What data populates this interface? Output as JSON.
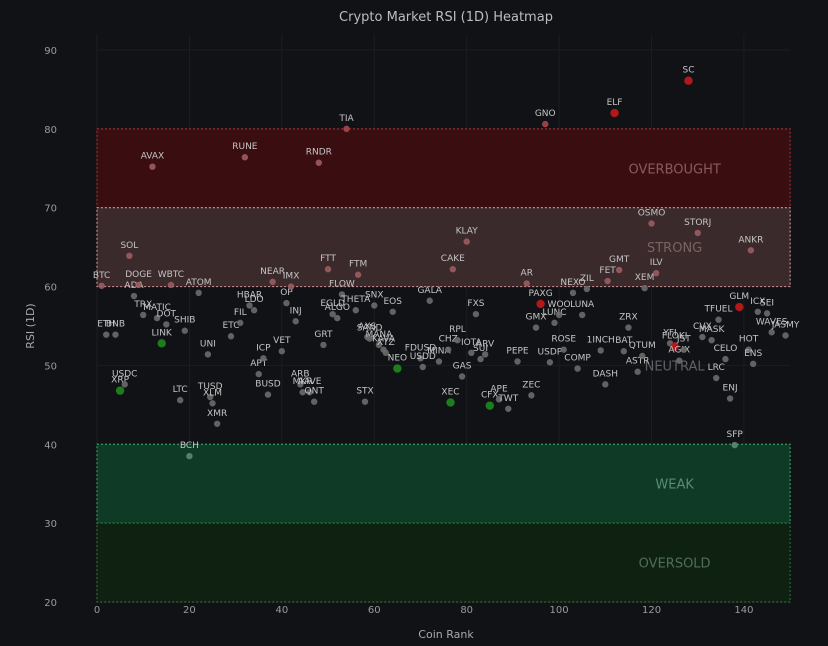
{
  "chart_data": {
    "type": "scatter",
    "title": "Crypto Market RSI (1D) Heatmap",
    "xlabel": "Coin Rank",
    "ylabel": "RSI (1D)",
    "xlim": [
      0,
      150
    ],
    "ylim": [
      20,
      92
    ],
    "x_ticks": [
      0,
      20,
      40,
      60,
      80,
      100,
      120,
      140
    ],
    "y_ticks": [
      20,
      30,
      40,
      50,
      60,
      70,
      80,
      90
    ],
    "grid": true,
    "zones": [
      {
        "name": "OVERBOUGHT",
        "y0": 70,
        "y1": 80,
        "fill": "#3a0e10",
        "border": "#9b2a2f",
        "text_color": "#8a5a5c"
      },
      {
        "name": "STRONG",
        "y0": 60,
        "y1": 70,
        "fill": "#3b2a2c",
        "border": "#c98a8e",
        "text_color": "#7a6264"
      },
      {
        "name": "NEUTRAL",
        "y0": 40,
        "y1": 60,
        "fill": "none",
        "border": "none",
        "text_color": "#5e6066"
      },
      {
        "name": "WEAK",
        "y0": 30,
        "y1": 40,
        "fill": "#0f3a26",
        "border": "#2f9a5e",
        "text_color": "#5a8c72"
      },
      {
        "name": "OVERSOLD",
        "y0": 20,
        "y1": 30,
        "fill": "#0f2212",
        "border": "#256b35",
        "text_color": "#4f6e55"
      }
    ],
    "points": [
      {
        "symbol": "BTC",
        "rank": 1,
        "rsi": 60.1
      },
      {
        "symbol": "ETH",
        "rank": 2,
        "rsi": 53.9
      },
      {
        "symbol": "BNB",
        "rank": 4,
        "rsi": 53.9
      },
      {
        "symbol": "XRP",
        "rank": 5,
        "rsi": 46.8
      },
      {
        "symbol": "USDC",
        "rank": 6,
        "rsi": 47.6
      },
      {
        "symbol": "SOL",
        "rank": 7,
        "rsi": 63.9
      },
      {
        "symbol": "ADA",
        "rank": 8,
        "rsi": 58.8
      },
      {
        "symbol": "DOGE",
        "rank": 9,
        "rsi": 60.2
      },
      {
        "symbol": "TRX",
        "rank": 10,
        "rsi": 56.4
      },
      {
        "symbol": "AVAX",
        "rank": 12,
        "rsi": 75.2
      },
      {
        "symbol": "MATIC",
        "rank": 13,
        "rsi": 56.0
      },
      {
        "symbol": "LINK",
        "rank": 14,
        "rsi": 52.8
      },
      {
        "symbol": "DOT",
        "rank": 15,
        "rsi": 55.2
      },
      {
        "symbol": "WBTC",
        "rank": 16,
        "rsi": 60.2
      },
      {
        "symbol": "LTC",
        "rank": 18,
        "rsi": 45.6
      },
      {
        "symbol": "SHIB",
        "rank": 19,
        "rsi": 54.4
      },
      {
        "symbol": "BCH",
        "rank": 20,
        "rsi": 38.5
      },
      {
        "symbol": "ATOM",
        "rank": 22,
        "rsi": 59.2
      },
      {
        "symbol": "UNI",
        "rank": 24,
        "rsi": 51.4
      },
      {
        "symbol": "TUSD",
        "rank": 24.5,
        "rsi": 46.0
      },
      {
        "symbol": "XLM",
        "rank": 25,
        "rsi": 45.2
      },
      {
        "symbol": "XMR",
        "rank": 26,
        "rsi": 42.6
      },
      {
        "symbol": "ETC",
        "rank": 29,
        "rsi": 53.7
      },
      {
        "symbol": "FIL",
        "rank": 31,
        "rsi": 55.4
      },
      {
        "symbol": "HBAR",
        "rank": 33,
        "rsi": 57.6
      },
      {
        "symbol": "RUNE",
        "rank": 32,
        "rsi": 76.4
      },
      {
        "symbol": "LDO",
        "rank": 34,
        "rsi": 57.0
      },
      {
        "symbol": "APT",
        "rank": 35,
        "rsi": 48.9
      },
      {
        "symbol": "ICP",
        "rank": 36,
        "rsi": 50.9
      },
      {
        "symbol": "BUSD",
        "rank": 37,
        "rsi": 46.3
      },
      {
        "symbol": "NEAR",
        "rank": 38,
        "rsi": 60.6
      },
      {
        "symbol": "VET",
        "rank": 40,
        "rsi": 51.8
      },
      {
        "symbol": "OP",
        "rank": 41,
        "rsi": 57.9
      },
      {
        "symbol": "IMX",
        "rank": 42,
        "rsi": 60.0
      },
      {
        "symbol": "INJ",
        "rank": 43,
        "rsi": 55.6
      },
      {
        "symbol": "ARB",
        "rank": 44,
        "rsi": 47.6
      },
      {
        "symbol": "MKR",
        "rank": 44.5,
        "rsi": 46.6
      },
      {
        "symbol": "AAVE",
        "rank": 46,
        "rsi": 46.6
      },
      {
        "symbol": "QNT",
        "rank": 47,
        "rsi": 45.4
      },
      {
        "symbol": "GRT",
        "rank": 49,
        "rsi": 52.6
      },
      {
        "symbol": "RNDR",
        "rank": 48,
        "rsi": 75.7
      },
      {
        "symbol": "FTT",
        "rank": 50,
        "rsi": 62.2
      },
      {
        "symbol": "EGLD",
        "rank": 51,
        "rsi": 56.5
      },
      {
        "symbol": "ALGO",
        "rank": 52,
        "rsi": 56.0
      },
      {
        "symbol": "FLOW",
        "rank": 53,
        "rsi": 59.0
      },
      {
        "symbol": "TIA",
        "rank": 54,
        "rsi": 80.0
      },
      {
        "symbol": "THETA",
        "rank": 56,
        "rsi": 57.0
      },
      {
        "symbol": "FTM",
        "rank": 56.5,
        "rsi": 61.5
      },
      {
        "symbol": "STX",
        "rank": 58,
        "rsi": 45.4
      },
      {
        "symbol": "SNX",
        "rank": 60,
        "rsi": 57.6
      },
      {
        "symbol": "SAND",
        "rank": 59,
        "rsi": 53.4
      },
      {
        "symbol": "AXS",
        "rank": 58.5,
        "rsi": 53.6
      },
      {
        "symbol": "MANA",
        "rank": 61,
        "rsi": 52.6
      },
      {
        "symbol": "KAVA",
        "rank": 62,
        "rsi": 52.0
      },
      {
        "symbol": "XTZ",
        "rank": 62.5,
        "rsi": 51.6
      },
      {
        "symbol": "EOS",
        "rank": 64,
        "rsi": 56.8
      },
      {
        "symbol": "NEO",
        "rank": 65,
        "rsi": 49.6
      },
      {
        "symbol": "FDUSD",
        "rank": 70,
        "rsi": 50.9
      },
      {
        "symbol": "USDD",
        "rank": 70.5,
        "rsi": 49.8
      },
      {
        "symbol": "GALA",
        "rank": 72,
        "rsi": 58.2
      },
      {
        "symbol": "MINA",
        "rank": 74,
        "rsi": 50.5
      },
      {
        "symbol": "CAKE",
        "rank": 77,
        "rsi": 62.2
      },
      {
        "symbol": "CHZ",
        "rank": 76,
        "rsi": 52.0
      },
      {
        "symbol": "RPL",
        "rank": 78,
        "rsi": 53.2
      },
      {
        "symbol": "GAS",
        "rank": 79,
        "rsi": 48.6
      },
      {
        "symbol": "KLAY",
        "rank": 80,
        "rsi": 65.7
      },
      {
        "symbol": "XEC",
        "rank": 76.5,
        "rsi": 45.3
      },
      {
        "symbol": "IOTA",
        "rank": 81,
        "rsi": 51.6
      },
      {
        "symbol": "FXS",
        "rank": 82,
        "rsi": 56.5
      },
      {
        "symbol": "SUI",
        "rank": 83,
        "rsi": 50.8
      },
      {
        "symbol": "ARV",
        "rank": 84,
        "rsi": 51.4
      },
      {
        "symbol": "CFX",
        "rank": 85,
        "rsi": 44.9
      },
      {
        "symbol": "APE",
        "rank": 87,
        "rsi": 45.7
      },
      {
        "symbol": "TWT",
        "rank": 89,
        "rsi": 44.5
      },
      {
        "symbol": "PEPE",
        "rank": 91,
        "rsi": 50.5
      },
      {
        "symbol": "AR",
        "rank": 93,
        "rsi": 60.4
      },
      {
        "symbol": "ZEC",
        "rank": 94,
        "rsi": 46.2
      },
      {
        "symbol": "GMX",
        "rank": 95,
        "rsi": 54.8
      },
      {
        "symbol": "PAXG",
        "rank": 96,
        "rsi": 57.8
      },
      {
        "symbol": "GNO",
        "rank": 97,
        "rsi": 80.6
      },
      {
        "symbol": "USDP",
        "rank": 98,
        "rsi": 50.4
      },
      {
        "symbol": "LUNC",
        "rank": 99,
        "rsi": 55.4
      },
      {
        "symbol": "WOO",
        "rank": 100,
        "rsi": 56.4
      },
      {
        "symbol": "ROSE",
        "rank": 101,
        "rsi": 52.0
      },
      {
        "symbol": "NEXO",
        "rank": 103,
        "rsi": 59.2
      },
      {
        "symbol": "COMP",
        "rank": 104,
        "rsi": 49.6
      },
      {
        "symbol": "LUNA",
        "rank": 105,
        "rsi": 56.4
      },
      {
        "symbol": "ZIL",
        "rank": 106,
        "rsi": 59.7
      },
      {
        "symbol": "DASH",
        "rank": 110,
        "rsi": 47.6
      },
      {
        "symbol": "1INCH",
        "rank": 109,
        "rsi": 51.9
      },
      {
        "symbol": "FET",
        "rank": 110.5,
        "rsi": 60.7
      },
      {
        "symbol": "ELF",
        "rank": 112,
        "rsi": 82.0
      },
      {
        "symbol": "GMT",
        "rank": 113,
        "rsi": 62.1
      },
      {
        "symbol": "ZRX",
        "rank": 115,
        "rsi": 54.8
      },
      {
        "symbol": "BAT",
        "rank": 114,
        "rsi": 51.8
      },
      {
        "symbol": "ASTR",
        "rank": 117,
        "rsi": 49.2
      },
      {
        "symbol": "QTUM",
        "rank": 118,
        "rsi": 51.2
      },
      {
        "symbol": "XEM",
        "rank": 118.5,
        "rsi": 59.8
      },
      {
        "symbol": "OSMO",
        "rank": 120,
        "rsi": 68.0
      },
      {
        "symbol": "ILV",
        "rank": 121,
        "rsi": 61.7
      },
      {
        "symbol": "YFI",
        "rank": 124,
        "rsi": 52.8
      },
      {
        "symbol": "FLOKI",
        "rank": 125,
        "rsi": 52.4
      },
      {
        "symbol": "AGIX",
        "rank": 126,
        "rsi": 50.6
      },
      {
        "symbol": "JST",
        "rank": 127,
        "rsi": 52.0
      },
      {
        "symbol": "SC",
        "rank": 128,
        "rsi": 86.1
      },
      {
        "symbol": "STORJ",
        "rank": 130,
        "rsi": 66.8
      },
      {
        "symbol": "CVX",
        "rank": 131,
        "rsi": 53.6
      },
      {
        "symbol": "MASK",
        "rank": 133,
        "rsi": 53.2
      },
      {
        "symbol": "LRC",
        "rank": 134,
        "rsi": 48.4
      },
      {
        "symbol": "TFUEL",
        "rank": 134.5,
        "rsi": 55.8
      },
      {
        "symbol": "CELO",
        "rank": 136,
        "rsi": 50.8
      },
      {
        "symbol": "ENJ",
        "rank": 137,
        "rsi": 45.8
      },
      {
        "symbol": "SFP",
        "rank": 138,
        "rsi": 39.9
      },
      {
        "symbol": "GLM",
        "rank": 139,
        "rsi": 57.4
      },
      {
        "symbol": "HOT",
        "rank": 141,
        "rsi": 52.0
      },
      {
        "symbol": "ANKR",
        "rank": 141.5,
        "rsi": 64.6
      },
      {
        "symbol": "ENS",
        "rank": 142,
        "rsi": 50.2
      },
      {
        "symbol": "ICX",
        "rank": 143,
        "rsi": 56.8
      },
      {
        "symbol": "SEI",
        "rank": 145,
        "rsi": 56.6
      },
      {
        "symbol": "WAVES",
        "rank": 146,
        "rsi": 54.2
      },
      {
        "symbol": "JASMY",
        "rank": 149,
        "rsi": 53.8
      }
    ],
    "highlight_colors": {
      "extreme_high": "#c41a1a",
      "extreme_low": "#1e8a1e",
      "neutral": "#6b6b6b",
      "warm": "#9c5c60",
      "cool": "#5e8a6e"
    }
  }
}
